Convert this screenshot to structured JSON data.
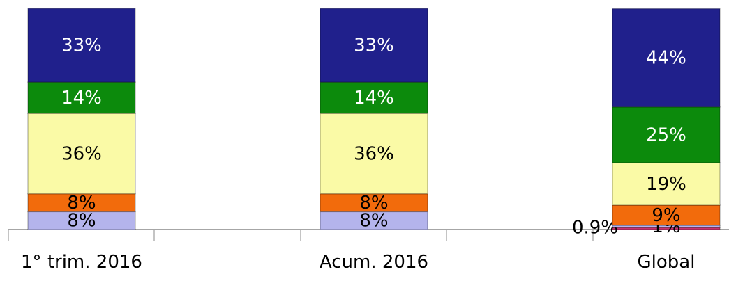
{
  "chart_data": {
    "type": "stacked_bar",
    "categories": [
      "1° trim. 2016",
      "Acum. 2016",
      "Global"
    ],
    "series": [
      {
        "color": "#c8326e",
        "values": [
          null,
          null,
          0.9
        ],
        "value_labels": [
          null,
          null,
          "0.9%"
        ]
      },
      {
        "color": "#b4b4ec",
        "values": [
          8,
          8,
          1
        ],
        "value_labels": [
          "8%",
          "8%",
          "1%"
        ]
      },
      {
        "color": "#f26b0c",
        "values": [
          8,
          8,
          9
        ],
        "value_labels": [
          "8%",
          "8%",
          "9%"
        ]
      },
      {
        "color": "#fafaa6",
        "values": [
          36,
          36,
          19
        ],
        "value_labels": [
          "36%",
          "36%",
          "19%"
        ]
      },
      {
        "color": "#0c8a0c",
        "values": [
          14,
          14,
          25
        ],
        "value_labels": [
          "14%",
          "14%",
          "25%"
        ]
      },
      {
        "color": "#20208c",
        "values": [
          33,
          33,
          44
        ],
        "value_labels": [
          "33%",
          "33%",
          "44%"
        ]
      }
    ]
  }
}
